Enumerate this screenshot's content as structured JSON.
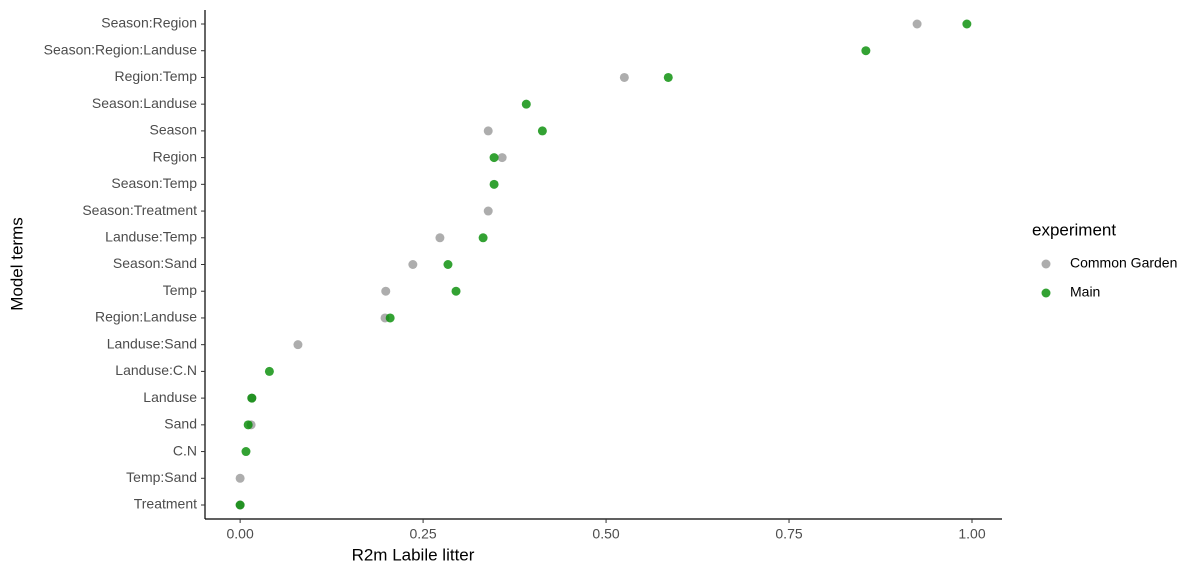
{
  "chart_data": {
    "type": "dot",
    "x_label": "R2m Labile litter",
    "y_label": "Model terms",
    "legend_title": "experiment",
    "categories": [
      "Season:Region",
      "Season:Region:Landuse",
      "Region:Temp",
      "Season:Landuse",
      "Season",
      "Region",
      "Season:Temp",
      "Season:Treatment",
      "Landuse:Temp",
      "Season:Sand",
      "Temp",
      "Region:Landuse",
      "Landuse:Sand",
      "Landuse:C.N",
      "Landuse",
      "Sand",
      "C.N",
      "Temp:Sand",
      "Treatment"
    ],
    "series": [
      {
        "name": "Common Garden",
        "color": "#999999",
        "values": [
          0.925,
          null,
          0.525,
          null,
          0.339,
          0.358,
          null,
          0.339,
          0.273,
          0.236,
          0.199,
          0.198,
          0.079,
          null,
          0.016,
          0.015,
          null,
          0.0,
          0.0
        ]
      },
      {
        "name": "Main",
        "color": "#008b00",
        "values": [
          0.993,
          0.855,
          0.585,
          0.391,
          0.413,
          0.347,
          0.347,
          null,
          0.332,
          0.284,
          0.295,
          0.205,
          null,
          0.04,
          0.016,
          0.011,
          0.008,
          null,
          0.0
        ]
      }
    ],
    "xlim": [
      -0.048,
      1.041
    ],
    "xticks": [
      {
        "value": 0,
        "label": "0.00"
      },
      {
        "value": 0.25,
        "label": "0.25"
      },
      {
        "value": 0.5,
        "label": "0.50"
      },
      {
        "value": 0.75,
        "label": "0.75"
      },
      {
        "value": 1,
        "label": "1.00"
      }
    ]
  }
}
